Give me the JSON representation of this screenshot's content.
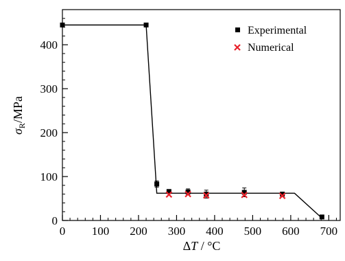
{
  "chart_data": {
    "type": "scatter",
    "xlim": [
      0,
      730
    ],
    "ylim": [
      0,
      480
    ],
    "x_ticks": [
      0,
      100,
      200,
      300,
      400,
      500,
      600,
      700
    ],
    "y_ticks": [
      0,
      100,
      200,
      300,
      400
    ],
    "x_minor_step": 20,
    "y_minor_step": 20,
    "xlabel": {
      "greek": "Δ",
      "var": "T",
      "unit": " / °C"
    },
    "ylabel": {
      "var": "σ",
      "sub": "R",
      "unit": "/MPa"
    },
    "grid": false,
    "legend_position": "top-right",
    "fit_line": {
      "x": [
        0,
        220,
        248,
        610,
        685
      ],
      "y": [
        445,
        445,
        62,
        62,
        3
      ]
    },
    "series": [
      {
        "name": "Experimental",
        "marker": "square",
        "color": "#000000",
        "x": [
          0,
          220,
          248,
          280,
          330,
          378,
          478,
          578,
          682
        ],
        "y": [
          445,
          445,
          83,
          66,
          65,
          60,
          64,
          60,
          8
        ],
        "err": [
          0,
          0,
          7,
          4,
          7,
          9,
          10,
          4,
          3
        ]
      },
      {
        "name": "Numerical",
        "marker": "x",
        "color": "#e8202a",
        "x": [
          280,
          330,
          378,
          478,
          578
        ],
        "y": [
          59,
          60,
          57,
          58,
          56
        ]
      }
    ]
  }
}
